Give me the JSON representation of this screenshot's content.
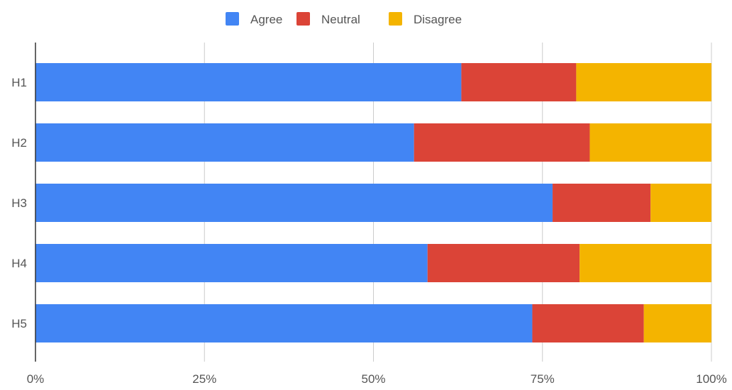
{
  "chart_data": {
    "type": "bar",
    "orientation": "horizontal",
    "stacking": "percent",
    "categories": [
      "H1",
      "H2",
      "H3",
      "H4",
      "H5"
    ],
    "series": [
      {
        "name": "Agree",
        "color": "#4285F4",
        "values": [
          63,
          56,
          76.5,
          58,
          73.5
        ]
      },
      {
        "name": "Neutral",
        "color": "#DB4437",
        "values": [
          17,
          26,
          14.5,
          22.5,
          16.5
        ]
      },
      {
        "name": "Disagree",
        "color": "#F4B400",
        "values": [
          20,
          18,
          9,
          19.5,
          10
        ]
      }
    ],
    "xlim": [
      0,
      100
    ],
    "xticks": [
      "0%",
      "25%",
      "50%",
      "75%",
      "100%"
    ],
    "grid": true,
    "legend_position": "top-center"
  },
  "colors": {
    "grid": "#cccccc",
    "axis": "#333333",
    "label": "#555555"
  }
}
